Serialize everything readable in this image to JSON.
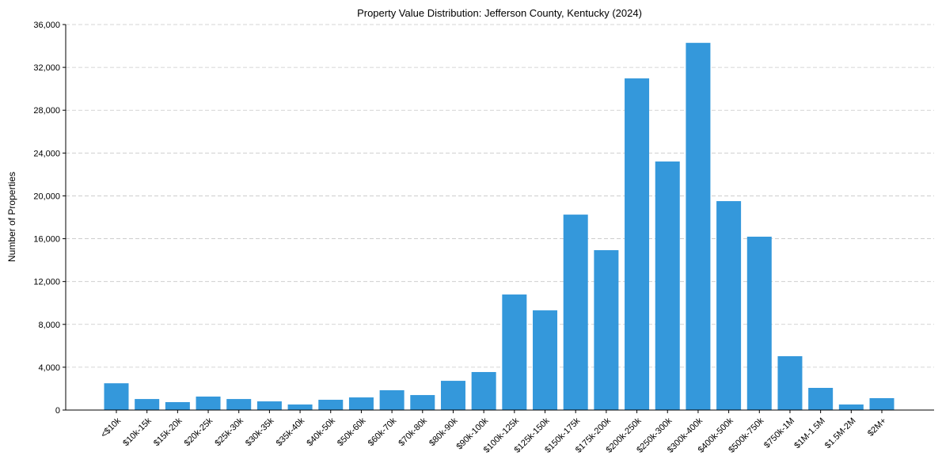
{
  "chart_data": {
    "type": "bar",
    "title": "Property Value Distribution: Jefferson County, Kentucky (2024)",
    "xlabel": "",
    "ylabel": "Number of Properties",
    "ylim": [
      0,
      36000
    ],
    "yticks": [
      0,
      4000,
      8000,
      12000,
      16000,
      20000,
      24000,
      28000,
      32000,
      36000
    ],
    "ytick_labels": [
      "0",
      "4,000",
      "8,000",
      "12,000",
      "16,000",
      "20,000",
      "24,000",
      "28,000",
      "32,000",
      "36,000"
    ],
    "grid": "horizontal dashed",
    "color": "#3498db",
    "categories": [
      "<$10k",
      "$10k-15k",
      "$15k-20k",
      "$20k-25k",
      "$25k-30k",
      "$30k-35k",
      "$35k-40k",
      "$40k-50k",
      "$50k-60k",
      "$60k-70k",
      "$70k-80k",
      "$80k-90k",
      "$90k-100k",
      "$100k-125k",
      "$125k-150k",
      "$150k-175k",
      "$175k-200k",
      "$200k-250k",
      "$250k-300k",
      "$300k-400k",
      "$400k-500k",
      "$500k-750k",
      "$750k-1M",
      "$1M-1.5M",
      "$1.5M-2M",
      "$2M+"
    ],
    "values": [
      2500,
      1030,
      740,
      1260,
      1030,
      810,
      520,
      960,
      1180,
      1850,
      1400,
      2730,
      3550,
      10790,
      9310,
      18250,
      14930,
      30970,
      23210,
      34290,
      19510,
      16190,
      5030,
      2070,
      520,
      1110
    ]
  }
}
